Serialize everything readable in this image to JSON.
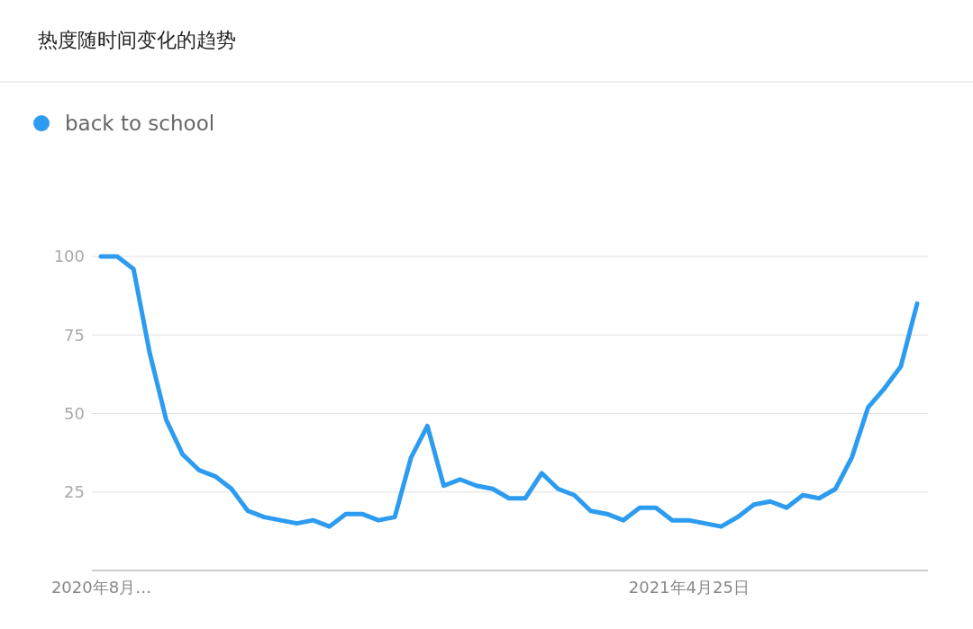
{
  "chart_data": {
    "type": "line",
    "title": "热度随时间变化的趋势",
    "categories": [
      "2020年8月…",
      null,
      null,
      null,
      null,
      null,
      null,
      null,
      null,
      null,
      null,
      null,
      null,
      null,
      null,
      null,
      null,
      null,
      null,
      null,
      null,
      null,
      null,
      null,
      null,
      null,
      null,
      null,
      null,
      null,
      null,
      null,
      null,
      null,
      null,
      null,
      "2021年4月25日",
      null,
      null,
      null,
      null,
      null,
      null,
      null,
      null,
      null,
      null,
      null,
      null,
      null,
      null
    ],
    "series": [
      {
        "name": "back to school",
        "color": "#2d9cf0",
        "values": [
          100,
          100,
          96,
          69,
          48,
          37,
          32,
          30,
          26,
          19,
          17,
          16,
          15,
          16,
          14,
          18,
          18,
          16,
          17,
          36,
          46,
          27,
          29,
          27,
          26,
          23,
          23,
          31,
          26,
          24,
          19,
          18,
          16,
          20,
          20,
          16,
          16,
          15,
          14,
          17,
          21,
          22,
          20,
          24,
          23,
          26,
          36,
          52,
          58,
          65,
          85
        ]
      }
    ],
    "ylim": [
      0,
      100
    ],
    "yticks": [
      25,
      50,
      75,
      100
    ],
    "grid": "y",
    "legend": "top left",
    "marker": "none",
    "line_style": "solid"
  }
}
